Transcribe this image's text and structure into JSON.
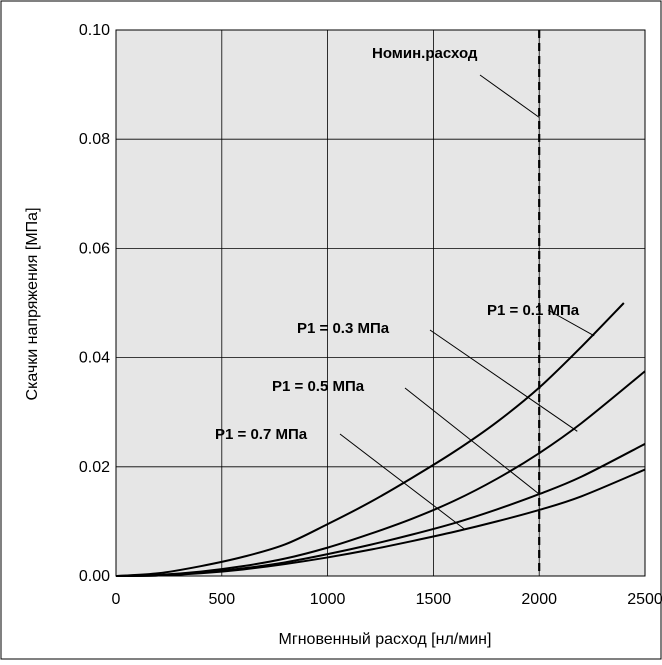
{
  "chart_data": {
    "type": "line",
    "title": "",
    "xlabel": "Мгновенный расход [нл/мин]",
    "ylabel": "Скачки напряжения [МПа]",
    "xlim": [
      0,
      2500
    ],
    "ylim": [
      0,
      0.1
    ],
    "x_ticks": [
      0,
      500,
      1000,
      1500,
      2000,
      2500
    ],
    "y_ticks": [
      0.0,
      0.02,
      0.04,
      0.06,
      0.08,
      0.1
    ],
    "x_tick_labels": [
      "0",
      "500",
      "1000",
      "1500",
      "2000",
      "2500"
    ],
    "y_tick_labels": [
      "0.00",
      "0.02",
      "0.04",
      "0.06",
      "0.08",
      "0.10"
    ],
    "grid": true,
    "background_color": "#e6e6e6",
    "series": [
      {
        "name": "P1 = 0.1 МПа",
        "x": [
          0,
          200,
          400,
          600,
          800,
          1000,
          1200,
          1400,
          1600,
          1800,
          2000,
          2200,
          2400
        ],
        "y": [
          0,
          0.0005,
          0.0018,
          0.0035,
          0.0058,
          0.0095,
          0.0135,
          0.018,
          0.0228,
          0.0282,
          0.0345,
          0.042,
          0.05
        ]
      },
      {
        "name": "P1 = 0.3 МПа",
        "x": [
          0,
          200,
          400,
          600,
          800,
          1000,
          1200,
          1400,
          1600,
          1800,
          2000,
          2200,
          2500
        ],
        "y": [
          0,
          0.0002,
          0.0008,
          0.0018,
          0.0032,
          0.0052,
          0.0077,
          0.0105,
          0.0138,
          0.0178,
          0.0225,
          0.028,
          0.0375
        ]
      },
      {
        "name": "P1 = 0.5 МПа",
        "x": [
          0,
          200,
          400,
          600,
          800,
          1000,
          1200,
          1400,
          1600,
          1800,
          2000,
          2200,
          2500
        ],
        "y": [
          0,
          0.0001,
          0.0006,
          0.0014,
          0.0025,
          0.004,
          0.0057,
          0.0076,
          0.0097,
          0.0122,
          0.015,
          0.0182,
          0.0242
        ]
      },
      {
        "name": "P1 = 0.7 МПа",
        "x": [
          0,
          200,
          400,
          600,
          800,
          1000,
          1200,
          1400,
          1600,
          1800,
          2000,
          2200,
          2500
        ],
        "y": [
          0,
          0.0001,
          0.0005,
          0.0012,
          0.0022,
          0.0034,
          0.0048,
          0.0064,
          0.0081,
          0.01,
          0.0121,
          0.0146,
          0.0195
        ]
      }
    ],
    "reference_line": {
      "label": "Номин.расход",
      "x": 2000,
      "style": "dashed"
    },
    "annotations": [
      {
        "text": "Номин.расход",
        "target_x": 2000,
        "target_y": 0.084
      },
      {
        "text": "P1 = 0.1 МПа",
        "target_x": 2260,
        "target_y": 0.044
      },
      {
        "text": "P1 = 0.3 МПа",
        "target_x": 2180,
        "target_y": 0.0265
      },
      {
        "text": "P1 = 0.5 МПа",
        "target_x": 2000,
        "target_y": 0.015
      },
      {
        "text": "P1 = 0.7 МПа",
        "target_x": 1650,
        "target_y": 0.0085
      }
    ]
  }
}
